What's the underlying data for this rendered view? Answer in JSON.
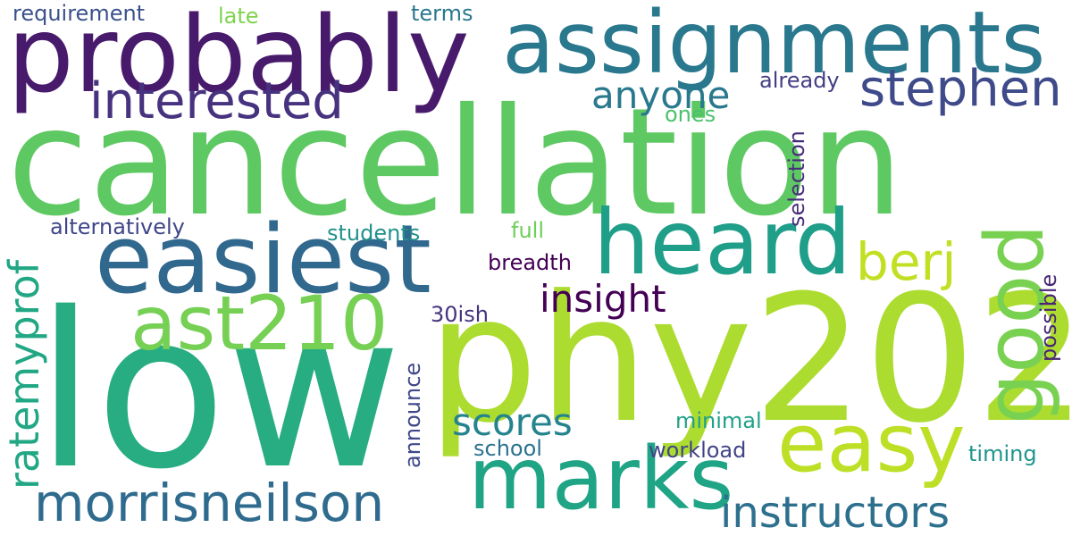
{
  "words": [
    {
      "text": "cancellation",
      "color": "#5ec962"
    },
    {
      "text": "low",
      "color": "#27ad81"
    },
    {
      "text": "phy202",
      "color": "#addc30"
    },
    {
      "text": "probably",
      "color": "#481a6c"
    },
    {
      "text": "assignments",
      "color": "#2a788e"
    },
    {
      "text": "easiest",
      "color": "#31688e"
    },
    {
      "text": "heard",
      "color": "#1f9e89"
    },
    {
      "text": "marks",
      "color": "#20a486"
    },
    {
      "text": "good",
      "color": "#79d151"
    },
    {
      "text": "easy",
      "color": "#bddf26"
    },
    {
      "text": "interested",
      "color": "#46327e"
    },
    {
      "text": "stephen",
      "color": "#3e4a89"
    },
    {
      "text": "ast210",
      "color": "#75d054"
    },
    {
      "text": "morrisneilson",
      "color": "#2f6b8e"
    },
    {
      "text": "instructors",
      "color": "#2d708e"
    },
    {
      "text": "berj",
      "color": "#c2df23"
    },
    {
      "text": "anyone",
      "color": "#29798e"
    },
    {
      "text": "ratemyprof",
      "color": "#22a785"
    },
    {
      "text": "scores",
      "color": "#25838e"
    },
    {
      "text": "insight",
      "color": "#440154"
    },
    {
      "text": "requirement",
      "color": "#3b518b"
    },
    {
      "text": "late",
      "color": "#7fd34e"
    },
    {
      "text": "terms",
      "color": "#2a788e"
    },
    {
      "text": "already",
      "color": "#433e85"
    },
    {
      "text": "ones",
      "color": "#4ac16d"
    },
    {
      "text": "selection",
      "color": "#472d7b"
    },
    {
      "text": "alternatively",
      "color": "#404688"
    },
    {
      "text": "students",
      "color": "#21918c"
    },
    {
      "text": "full",
      "color": "#6ece58"
    },
    {
      "text": "breadth",
      "color": "#440154"
    },
    {
      "text": "possible",
      "color": "#482576"
    },
    {
      "text": "30ish",
      "color": "#46337f"
    },
    {
      "text": "announce",
      "color": "#3f4889"
    },
    {
      "text": "minimal",
      "color": "#1fa188"
    },
    {
      "text": "school",
      "color": "#2c728e"
    },
    {
      "text": "workload",
      "color": "#414487"
    },
    {
      "text": "timing",
      "color": "#1f958b"
    }
  ]
}
